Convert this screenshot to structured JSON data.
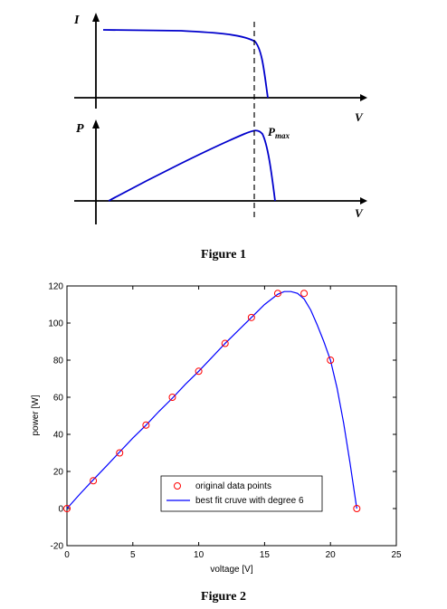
{
  "figure1": {
    "caption": "Figure 1",
    "iv_y_label": "I",
    "iv_x_label": "V",
    "pv_y_label": "P",
    "pv_x_label": "V",
    "pmax_main": "P",
    "pmax_sub": "max",
    "curve_color": "#0000cc"
  },
  "figure2": {
    "caption": "Figure 2"
  },
  "chart_data": [
    {
      "type": "line",
      "title": "",
      "xlabel": "voltage [V]",
      "ylabel": "power [W]",
      "xlim": [
        0,
        25
      ],
      "ylim": [
        -20,
        120
      ],
      "xticks": [
        0,
        5,
        10,
        15,
        20,
        25
      ],
      "yticks": [
        -20,
        0,
        20,
        40,
        60,
        80,
        100,
        120
      ],
      "grid": false,
      "legend": "bottom-center",
      "series": [
        {
          "name": "original data points",
          "kind": "scatter",
          "marker": "circle",
          "color": "#ff0000",
          "x": [
            0,
            2,
            4,
            6,
            8,
            10,
            12,
            14,
            16,
            18,
            20,
            22
          ],
          "y": [
            0,
            15,
            30,
            45,
            60,
            74,
            89,
            103,
            116,
            116,
            80,
            0
          ]
        },
        {
          "name": "best fit cruve with degree 6",
          "kind": "line",
          "color": "#0000ff",
          "x": [
            0,
            1,
            2,
            3,
            4,
            5,
            6,
            7,
            8,
            9,
            10,
            11,
            12,
            13,
            14,
            15,
            16,
            16.5,
            17,
            17.5,
            18,
            18.5,
            19,
            19.5,
            20,
            20.5,
            21,
            21.5,
            22
          ],
          "y": [
            0,
            8,
            15.5,
            23,
            30.5,
            38,
            45,
            52.5,
            59.5,
            67,
            74,
            81.5,
            89,
            96,
            103,
            110,
            115.5,
            117,
            117,
            116,
            113,
            107,
            99,
            90,
            80,
            65,
            46,
            24,
            0
          ]
        }
      ]
    }
  ]
}
